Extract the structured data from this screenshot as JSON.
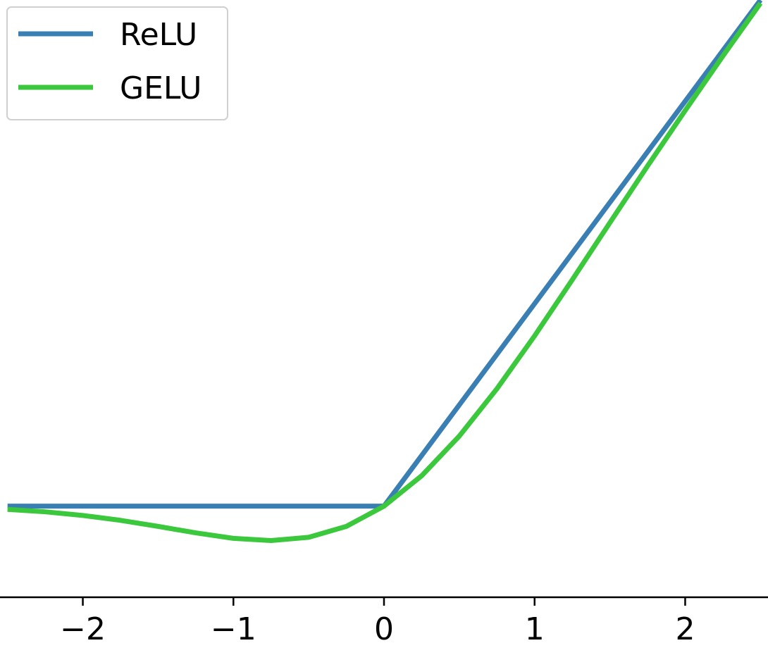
{
  "chart_data": {
    "type": "line",
    "title": "",
    "xlabel": "",
    "ylabel": "",
    "xlim": [
      -2.55,
      2.55
    ],
    "ylim": [
      -0.45,
      2.5
    ],
    "x_ticks": [
      -2,
      -1,
      0,
      1,
      2
    ],
    "x_tick_labels": [
      "−2",
      "−1",
      "0",
      "1",
      "2"
    ],
    "show_y_axis": false,
    "grid": false,
    "legend": {
      "position": "top-left",
      "entries": [
        "ReLU",
        "GELU"
      ]
    },
    "series": [
      {
        "name": "ReLU",
        "color": "#3a7fb4",
        "x": [
          -2.5,
          -2,
          -1.5,
          -1,
          -0.5,
          0,
          0.5,
          1,
          1.5,
          2,
          2.5
        ],
        "y": [
          0,
          0,
          0,
          0,
          0,
          0,
          0.5,
          1,
          1.5,
          2,
          2.5
        ]
      },
      {
        "name": "GELU",
        "color": "#3cc83c",
        "x": [
          -2.5,
          -2.25,
          -2,
          -1.75,
          -1.5,
          -1.25,
          -1,
          -0.75,
          -0.5,
          -0.25,
          0,
          0.25,
          0.5,
          0.75,
          1,
          1.25,
          1.5,
          1.75,
          2,
          2.25,
          2.5
        ],
        "y": [
          -0.016,
          -0.028,
          -0.046,
          -0.07,
          -0.1,
          -0.132,
          -0.159,
          -0.17,
          -0.154,
          -0.1,
          0,
          0.15,
          0.346,
          0.58,
          0.841,
          1.118,
          1.4,
          1.68,
          1.954,
          2.223,
          2.484
        ]
      }
    ]
  }
}
